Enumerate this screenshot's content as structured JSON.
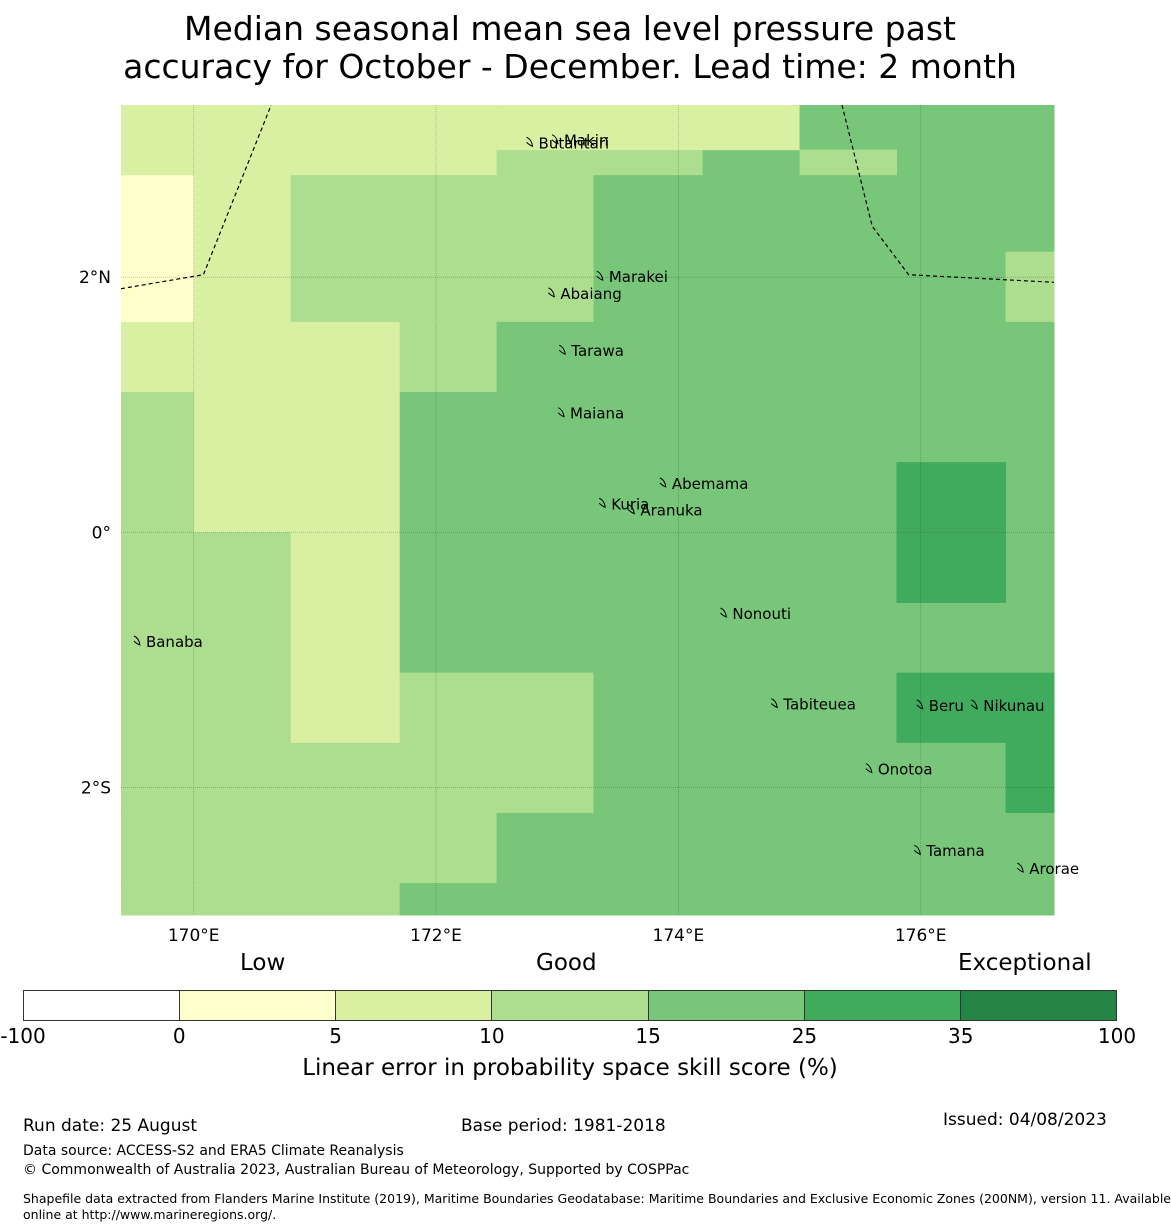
{
  "title_line1": "Median seasonal mean sea level pressure past",
  "title_line2": "accuracy for October - December. Lead time: 2 month",
  "map": {
    "extent": {
      "lon_min": 169.4,
      "lon_max": 177.1,
      "lat_min": -3.0,
      "lat_max": 3.35
    },
    "lon_ticks": [
      {
        "value": 170,
        "label": "170°E"
      },
      {
        "value": 172,
        "label": "172°E"
      },
      {
        "value": 174,
        "label": "174°E"
      },
      {
        "value": 176,
        "label": "176°E"
      }
    ],
    "lat_ticks": [
      {
        "value": 2,
        "label": "2°N"
      },
      {
        "value": 0,
        "label": "0°"
      },
      {
        "value": -2,
        "label": "2°S"
      }
    ],
    "colors": {
      "c0": "#ffffcc",
      "c5": "#d9f0a3",
      "c10": "#addd8e",
      "c15": "#78c679",
      "c25": "#41ab5d"
    },
    "cells": [
      {
        "lon0": 169.4,
        "lon1": 170.0,
        "lat0": 2.8,
        "lat1": 3.35,
        "color": "c5"
      },
      {
        "lon0": 170.0,
        "lon1": 172.5,
        "lat0": 2.8,
        "lat1": 3.35,
        "color": "c5"
      },
      {
        "lon0": 172.5,
        "lon1": 174.2,
        "lat0": 2.8,
        "lat1": 3.35,
        "color": "c10"
      },
      {
        "lon0": 174.2,
        "lon1": 175.0,
        "lat0": 2.8,
        "lat1": 3.35,
        "color": "c15"
      },
      {
        "lon0": 172.5,
        "lon1": 175.0,
        "lat0": 3.0,
        "lat1": 3.35,
        "color": "c5"
      },
      {
        "lon0": 175.0,
        "lon1": 177.1,
        "lat0": 2.8,
        "lat1": 3.35,
        "color": "c15"
      },
      {
        "lon0": 175.0,
        "lon1": 175.8,
        "lat0": 2.8,
        "lat1": 3.0,
        "color": "c10"
      },
      {
        "lon0": 169.4,
        "lon1": 170.0,
        "lat0": 1.65,
        "lat1": 2.8,
        "color": "c0"
      },
      {
        "lon0": 170.0,
        "lon1": 170.8,
        "lat0": 1.65,
        "lat1": 2.8,
        "color": "c5"
      },
      {
        "lon0": 170.8,
        "lon1": 173.3,
        "lat0": 1.65,
        "lat1": 2.8,
        "color": "c10"
      },
      {
        "lon0": 173.3,
        "lon1": 177.1,
        "lat0": 1.65,
        "lat1": 2.8,
        "color": "c15"
      },
      {
        "lon0": 176.7,
        "lon1": 177.1,
        "lat0": 1.65,
        "lat1": 2.2,
        "color": "c10"
      },
      {
        "lon0": 169.4,
        "lon1": 170.0,
        "lat0": 1.1,
        "lat1": 1.65,
        "color": "c5"
      },
      {
        "lon0": 170.0,
        "lon1": 171.7,
        "lat0": 1.1,
        "lat1": 1.65,
        "color": "c5"
      },
      {
        "lon0": 171.7,
        "lon1": 172.5,
        "lat0": 1.1,
        "lat1": 1.65,
        "color": "c10"
      },
      {
        "lon0": 172.5,
        "lon1": 177.1,
        "lat0": 1.1,
        "lat1": 1.65,
        "color": "c15"
      },
      {
        "lon0": 169.4,
        "lon1": 170.0,
        "lat0": 0.0,
        "lat1": 1.1,
        "color": "c10"
      },
      {
        "lon0": 170.0,
        "lon1": 171.7,
        "lat0": 0.0,
        "lat1": 1.1,
        "color": "c5"
      },
      {
        "lon0": 171.7,
        "lon1": 177.1,
        "lat0": 0.0,
        "lat1": 1.1,
        "color": "c15"
      },
      {
        "lon0": 175.8,
        "lon1": 176.7,
        "lat0": 0.0,
        "lat1": 0.55,
        "color": "c25"
      },
      {
        "lon0": 169.4,
        "lon1": 170.8,
        "lat0": -1.65,
        "lat1": 0.0,
        "color": "c10"
      },
      {
        "lon0": 170.8,
        "lon1": 171.7,
        "lat0": -1.65,
        "lat1": 0.0,
        "color": "c5"
      },
      {
        "lon0": 171.7,
        "lon1": 177.1,
        "lat0": -1.1,
        "lat1": 0.0,
        "color": "c15"
      },
      {
        "lon0": 175.8,
        "lon1": 176.7,
        "lat0": -0.55,
        "lat1": 0.0,
        "color": "c25"
      },
      {
        "lon0": 171.7,
        "lon1": 173.3,
        "lat0": -1.65,
        "lat1": -1.1,
        "color": "c10"
      },
      {
        "lon0": 173.3,
        "lon1": 175.8,
        "lat0": -1.65,
        "lat1": -1.1,
        "color": "c15"
      },
      {
        "lon0": 175.8,
        "lon1": 177.1,
        "lat0": -1.65,
        "lat1": -1.1,
        "color": "c25"
      },
      {
        "lon0": 169.4,
        "lon1": 173.3,
        "lat0": -2.2,
        "lat1": -1.65,
        "color": "c10"
      },
      {
        "lon0": 173.3,
        "lon1": 176.7,
        "lat0": -2.2,
        "lat1": -1.65,
        "color": "c15"
      },
      {
        "lon0": 176.7,
        "lon1": 177.1,
        "lat0": -2.2,
        "lat1": -1.65,
        "color": "c25"
      },
      {
        "lon0": 169.4,
        "lon1": 172.5,
        "lat0": -2.75,
        "lat1": -2.2,
        "color": "c10"
      },
      {
        "lon0": 172.5,
        "lon1": 177.1,
        "lat0": -2.75,
        "lat1": -2.2,
        "color": "c15"
      },
      {
        "lon0": 176.7,
        "lon1": 177.1,
        "lat0": -2.2,
        "lat1": -2.2,
        "color": "c25"
      },
      {
        "lon0": 169.4,
        "lon1": 171.7,
        "lat0": -3.0,
        "lat1": -2.75,
        "color": "c10"
      },
      {
        "lon0": 171.7,
        "lon1": 177.1,
        "lat0": -3.0,
        "lat1": -2.75,
        "color": "c15"
      }
    ],
    "eez_boundaries": [
      [
        [
          169.4,
          1.91
        ],
        [
          170.08,
          2.02
        ],
        [
          170.64,
          3.35
        ]
      ],
      [
        [
          175.35,
          3.35
        ],
        [
          175.6,
          2.4
        ],
        [
          175.9,
          2.02
        ],
        [
          177.1,
          1.96
        ]
      ]
    ],
    "islands": [
      {
        "name": "Makin",
        "lon": 172.99,
        "lat": 3.07
      },
      {
        "name": "Butaritari",
        "lon": 172.78,
        "lat": 3.05
      },
      {
        "name": "Marakei",
        "lon": 173.36,
        "lat": 2.0
      },
      {
        "name": "Abaiang",
        "lon": 172.96,
        "lat": 1.87
      },
      {
        "name": "Tarawa",
        "lon": 173.05,
        "lat": 1.42
      },
      {
        "name": "Maiana",
        "lon": 173.04,
        "lat": 0.93
      },
      {
        "name": "Abemama",
        "lon": 173.88,
        "lat": 0.38
      },
      {
        "name": "Kuria",
        "lon": 173.38,
        "lat": 0.22
      },
      {
        "name": "Aranuka",
        "lon": 173.62,
        "lat": 0.17
      },
      {
        "name": "Nonouti",
        "lon": 174.38,
        "lat": -0.64
      },
      {
        "name": "Banaba",
        "lon": 169.54,
        "lat": -0.86
      },
      {
        "name": "Tabiteuea",
        "lon": 174.8,
        "lat": -1.35
      },
      {
        "name": "Beru",
        "lon": 176.0,
        "lat": -1.36
      },
      {
        "name": "Nikunau",
        "lon": 176.45,
        "lat": -1.36
      },
      {
        "name": "Onotoa",
        "lon": 175.58,
        "lat": -1.86
      },
      {
        "name": "Tamana",
        "lon": 175.98,
        "lat": -2.5
      },
      {
        "name": "Arorae",
        "lon": 176.83,
        "lat": -2.64
      }
    ]
  },
  "colorbar": {
    "category_low": "Low",
    "category_good": "Good",
    "category_exceptional": "Exceptional",
    "ticks": [
      "-100",
      "0",
      "5",
      "10",
      "15",
      "25",
      "35",
      "100"
    ],
    "colors": [
      "#ffffff",
      "#ffffcc",
      "#d9f0a3",
      "#addd8e",
      "#78c679",
      "#41ab5d",
      "#238443"
    ],
    "label": "Linear error in probability space skill score (%)"
  },
  "footer": {
    "run_date": "Run date: 25 August",
    "base_period": "Base period: 1981-2018",
    "issued": "Issued: 04/08/2023",
    "data_source": "Data source: ACCESS-S2 and ERA5 Climate Reanalysis",
    "copyright": "© Commonwealth of Australia 2023, Australian Bureau of Meteorology, Supported by COSPPac",
    "shapefile_line1": "Shapefile data extracted from Flanders Marine Institute (2019), Maritime Boundaries Geodatabase: Maritime Boundaries and Exclusive Economic Zones (200NM), version 11. Available",
    "shapefile_line2": "online at http://www.marineregions.org/."
  }
}
